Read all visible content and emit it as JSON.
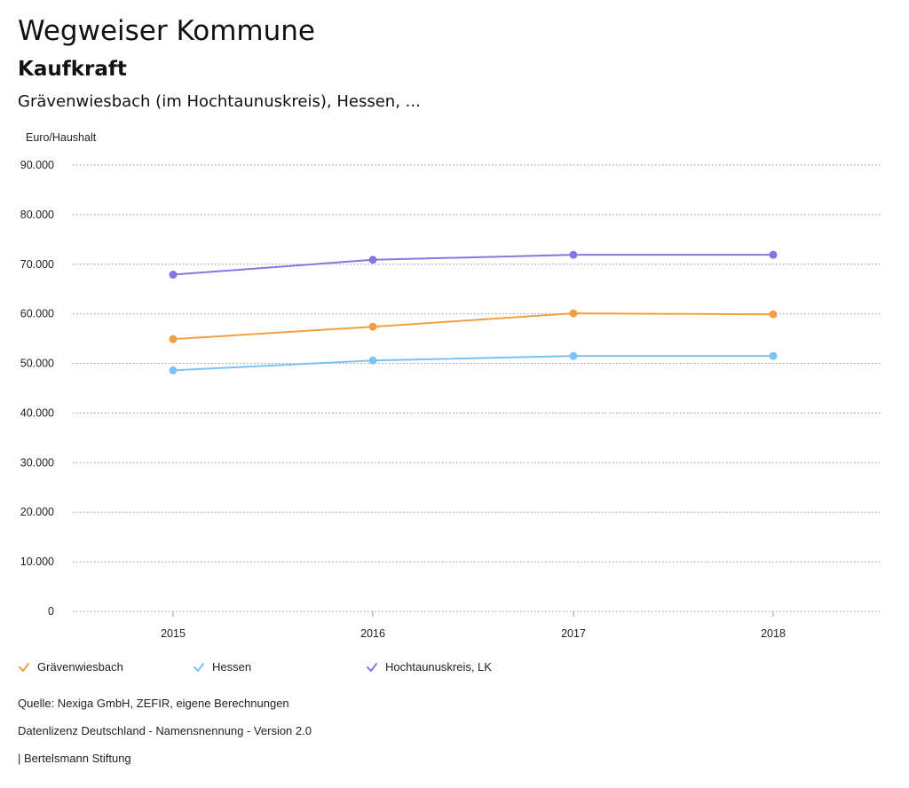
{
  "header": {
    "title": "Wegweiser Kommune",
    "subtitle": "Kaufkraft",
    "region": "Grävenwiesbach (im Hochtaunuskreis), Hessen, ..."
  },
  "chart_data": {
    "type": "line",
    "ylabel": "Euro/Haushalt",
    "ylim": [
      0,
      90000
    ],
    "y_ticks": [
      {
        "value": 0,
        "label": "0"
      },
      {
        "value": 10000,
        "label": "10.000"
      },
      {
        "value": 20000,
        "label": "20.000"
      },
      {
        "value": 30000,
        "label": "30.000"
      },
      {
        "value": 40000,
        "label": "40.000"
      },
      {
        "value": 50000,
        "label": "50.000"
      },
      {
        "value": 60000,
        "label": "60.000"
      },
      {
        "value": 70000,
        "label": "70.000"
      },
      {
        "value": 80000,
        "label": "80.000"
      },
      {
        "value": 90000,
        "label": "90.000"
      }
    ],
    "categories": [
      "2015",
      "2016",
      "2017",
      "2018"
    ],
    "grid": true,
    "series": [
      {
        "name": "Grävenwiesbach",
        "color": "#f0a042",
        "values": [
          54900,
          57400,
          60100,
          59900
        ]
      },
      {
        "name": "Hessen",
        "color": "#79c3f5",
        "values": [
          48600,
          50600,
          51500,
          51500
        ]
      },
      {
        "name": "Hochtaunuskreis, LK",
        "color": "#8b74e2",
        "values": [
          67900,
          70900,
          71900,
          71900
        ]
      }
    ]
  },
  "footer": {
    "source": "Quelle: Nexiga GmbH, ZEFIR, eigene Berechnungen",
    "license": "Datenlizenz Deutschland - Namensnennung - Version 2.0",
    "publisher": "| Bertelsmann Stiftung"
  }
}
